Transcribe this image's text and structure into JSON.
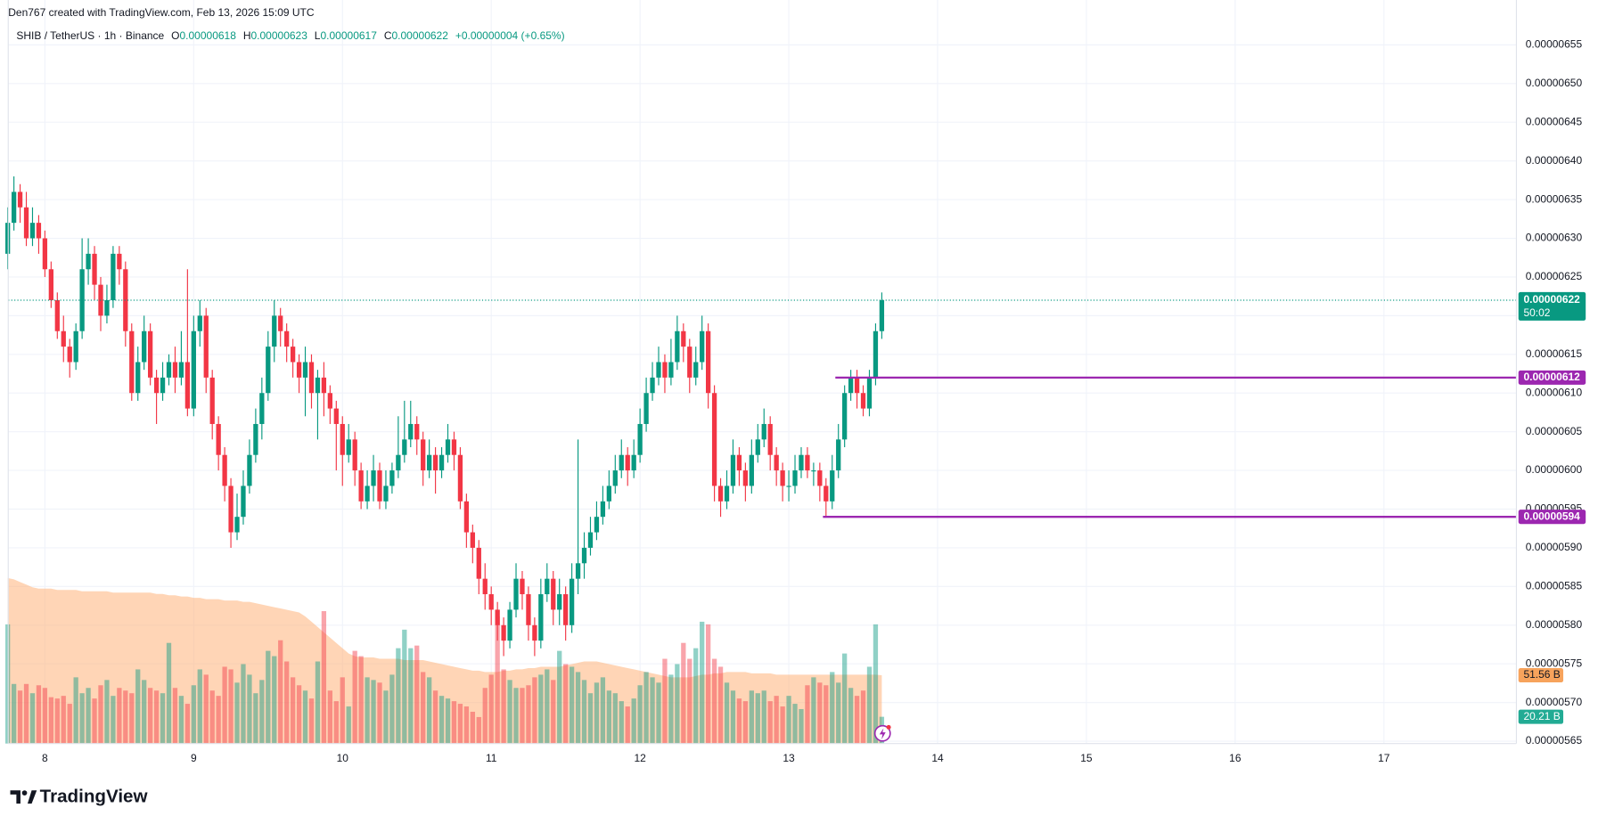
{
  "header": "Den767 created with TradingView.com, Feb 13, 2026 15:09 UTC",
  "legend": {
    "symbol": "SHIB / TetherUS · 1h · Binance",
    "ohlc": [
      {
        "label": "O",
        "value": "0.00000618"
      },
      {
        "label": "H",
        "value": "0.00000623"
      },
      {
        "label": "L",
        "value": "0.00000617"
      },
      {
        "label": "C",
        "value": "0.00000622"
      }
    ],
    "change": "+0.00000004 (+0.65%)"
  },
  "logo": "TradingView",
  "chart_data": {
    "type": "candlestick",
    "up_color": "#089981",
    "down_color": "#f23645",
    "ylim": [
      5.647e-06,
      6.608e-06
    ],
    "yticks": [
      {
        "value": 5.65e-06,
        "label": "0.00000565"
      },
      {
        "value": 5.7e-06,
        "label": "0.00000570"
      },
      {
        "value": 5.75e-06,
        "label": "0.00000575"
      },
      {
        "value": 5.8e-06,
        "label": "0.00000580"
      },
      {
        "value": 5.85e-06,
        "label": "0.00000585"
      },
      {
        "value": 5.9e-06,
        "label": "0.00000590"
      },
      {
        "value": 5.95e-06,
        "label": "0.00000595"
      },
      {
        "value": 6e-06,
        "label": "0.00000600"
      },
      {
        "value": 6.05e-06,
        "label": "0.00000605"
      },
      {
        "value": 6.1e-06,
        "label": "0.00000610"
      },
      {
        "value": 6.15e-06,
        "label": "0.00000615"
      },
      {
        "value": 6.2e-06,
        "label": "0.00000620"
      },
      {
        "value": 6.25e-06,
        "label": "0.00000625"
      },
      {
        "value": 6.3e-06,
        "label": "0.00000630"
      },
      {
        "value": 6.35e-06,
        "label": "0.00000635"
      },
      {
        "value": 6.4e-06,
        "label": "0.00000640"
      },
      {
        "value": 6.45e-06,
        "label": "0.00000645"
      },
      {
        "value": 6.5e-06,
        "label": "0.00000650"
      },
      {
        "value": 6.55e-06,
        "label": "0.00000655"
      }
    ],
    "xticks": [
      {
        "value": 6,
        "label": "8"
      },
      {
        "value": 30,
        "label": "9"
      },
      {
        "value": 54,
        "label": "10"
      },
      {
        "value": 78,
        "label": "11"
      },
      {
        "value": 102,
        "label": "12"
      },
      {
        "value": 126,
        "label": "13"
      },
      {
        "value": 150,
        "label": "14"
      },
      {
        "value": 174,
        "label": "15"
      },
      {
        "value": 198,
        "label": "16"
      },
      {
        "value": 222,
        "label": "17"
      }
    ],
    "grid": true,
    "candles": [
      [
        6.28e-06,
        6.34e-06,
        6.26e-06,
        6.32e-06
      ],
      [
        6.32e-06,
        6.38e-06,
        6.31e-06,
        6.36e-06
      ],
      [
        6.36e-06,
        6.37e-06,
        6.32e-06,
        6.34e-06
      ],
      [
        6.34e-06,
        6.36e-06,
        6.29e-06,
        6.3e-06
      ],
      [
        6.3e-06,
        6.34e-06,
        6.29e-06,
        6.32e-06
      ],
      [
        6.32e-06,
        6.33e-06,
        6.28e-06,
        6.3e-06
      ],
      [
        6.3e-06,
        6.31e-06,
        6.25e-06,
        6.26e-06
      ],
      [
        6.26e-06,
        6.27e-06,
        6.21e-06,
        6.22e-06
      ],
      [
        6.22e-06,
        6.23e-06,
        6.17e-06,
        6.18e-06
      ],
      [
        6.18e-06,
        6.2e-06,
        6.14e-06,
        6.16e-06
      ],
      [
        6.16e-06,
        6.17e-06,
        6.12e-06,
        6.14e-06
      ],
      [
        6.14e-06,
        6.19e-06,
        6.13e-06,
        6.18e-06
      ],
      [
        6.18e-06,
        6.3e-06,
        6.17e-06,
        6.26e-06
      ],
      [
        6.26e-06,
        6.3e-06,
        6.24e-06,
        6.28e-06
      ],
      [
        6.28e-06,
        6.29e-06,
        6.22e-06,
        6.24e-06
      ],
      [
        6.24e-06,
        6.25e-06,
        6.18e-06,
        6.2e-06
      ],
      [
        6.2e-06,
        6.24e-06,
        6.19e-06,
        6.22e-06
      ],
      [
        6.22e-06,
        6.29e-06,
        6.21e-06,
        6.28e-06
      ],
      [
        6.28e-06,
        6.29e-06,
        6.24e-06,
        6.26e-06
      ],
      [
        6.26e-06,
        6.27e-06,
        6.16e-06,
        6.18e-06
      ],
      [
        6.18e-06,
        6.19e-06,
        6.09e-06,
        6.1e-06
      ],
      [
        6.1e-06,
        6.16e-06,
        6.09e-06,
        6.14e-06
      ],
      [
        6.14e-06,
        6.2e-06,
        6.13e-06,
        6.18e-06
      ],
      [
        6.18e-06,
        6.19e-06,
        6.11e-06,
        6.12e-06
      ],
      [
        6.12e-06,
        6.13e-06,
        6.06e-06,
        6.1e-06
      ],
      [
        6.1e-06,
        6.14e-06,
        6.09e-06,
        6.12e-06
      ],
      [
        6.12e-06,
        6.15e-06,
        6.11e-06,
        6.14e-06
      ],
      [
        6.14e-06,
        6.16e-06,
        6.1e-06,
        6.12e-06
      ],
      [
        6.12e-06,
        6.18e-06,
        6.11e-06,
        6.14e-06
      ],
      [
        6.14e-06,
        6.26e-06,
        6.07e-06,
        6.08e-06
      ],
      [
        6.08e-06,
        6.2e-06,
        6.07e-06,
        6.18e-06
      ],
      [
        6.18e-06,
        6.22e-06,
        6.16e-06,
        6.2e-06
      ],
      [
        6.2e-06,
        6.21e-06,
        6.1e-06,
        6.12e-06
      ],
      [
        6.12e-06,
        6.13e-06,
        6.04e-06,
        6.06e-06
      ],
      [
        6.06e-06,
        6.07e-06,
        6e-06,
        6.02e-06
      ],
      [
        6.02e-06,
        6.03e-06,
        5.96e-06,
        5.98e-06
      ],
      [
        5.98e-06,
        5.99e-06,
        5.9e-06,
        5.92e-06
      ],
      [
        5.92e-06,
        5.97e-06,
        5.91e-06,
        5.94e-06
      ],
      [
        5.94e-06,
        6e-06,
        5.93e-06,
        5.98e-06
      ],
      [
        5.98e-06,
        6.04e-06,
        5.97e-06,
        6.02e-06
      ],
      [
        6.02e-06,
        6.08e-06,
        6.01e-06,
        6.06e-06
      ],
      [
        6.06e-06,
        6.12e-06,
        6.04e-06,
        6.1e-06
      ],
      [
        6.1e-06,
        6.18e-06,
        6.09e-06,
        6.16e-06
      ],
      [
        6.16e-06,
        6.22e-06,
        6.14e-06,
        6.2e-06
      ],
      [
        6.2e-06,
        6.21e-06,
        6.16e-06,
        6.18e-06
      ],
      [
        6.18e-06,
        6.19e-06,
        6.14e-06,
        6.16e-06
      ],
      [
        6.16e-06,
        6.17e-06,
        6.12e-06,
        6.14e-06
      ],
      [
        6.14e-06,
        6.15e-06,
        6.1e-06,
        6.12e-06
      ],
      [
        6.12e-06,
        6.16e-06,
        6.07e-06,
        6.14e-06
      ],
      [
        6.14e-06,
        6.15e-06,
        6.08e-06,
        6.1e-06
      ],
      [
        6.1e-06,
        6.13e-06,
        6.04e-06,
        6.12e-06
      ],
      [
        6.12e-06,
        6.14e-06,
        6.07e-06,
        6.1e-06
      ],
      [
        6.1e-06,
        6.11e-06,
        6.06e-06,
        6.08e-06
      ],
      [
        6.08e-06,
        6.09e-06,
        6e-06,
        6.06e-06
      ],
      [
        6.06e-06,
        6.07e-06,
        5.98e-06,
        6.02e-06
      ],
      [
        6.02e-06,
        6.06e-06,
        6.01e-06,
        6.04e-06
      ],
      [
        6.04e-06,
        6.05e-06,
        5.98e-06,
        6e-06
      ],
      [
        6e-06,
        6.01e-06,
        5.95e-06,
        5.96e-06
      ],
      [
        5.96e-06,
        6e-06,
        5.95e-06,
        5.98e-06
      ],
      [
        5.98e-06,
        6.02e-06,
        5.96e-06,
        6e-06
      ],
      [
        6e-06,
        6.01e-06,
        5.95e-06,
        5.96e-06
      ],
      [
        5.96e-06,
        6e-06,
        5.95e-06,
        5.98e-06
      ],
      [
        5.98e-06,
        6.01e-06,
        5.97e-06,
        6e-06
      ],
      [
        6e-06,
        6.07e-06,
        5.99e-06,
        6.02e-06
      ],
      [
        6.02e-06,
        6.09e-06,
        6.01e-06,
        6.04e-06
      ],
      [
        6.04e-06,
        6.09e-06,
        6.03e-06,
        6.06e-06
      ],
      [
        6.06e-06,
        6.07e-06,
        6.02e-06,
        6.04e-06
      ],
      [
        6.04e-06,
        6.05e-06,
        5.98e-06,
        6e-06
      ],
      [
        6e-06,
        6.04e-06,
        5.99e-06,
        6.02e-06
      ],
      [
        6.02e-06,
        6.03e-06,
        5.97e-06,
        6e-06
      ],
      [
        6e-06,
        6.03e-06,
        5.99e-06,
        6.02e-06
      ],
      [
        6.02e-06,
        6.06e-06,
        6.01e-06,
        6.04e-06
      ],
      [
        6.04e-06,
        6.05e-06,
        6e-06,
        6.02e-06
      ],
      [
        6.02e-06,
        6.03e-06,
        5.95e-06,
        5.96e-06
      ],
      [
        5.96e-06,
        5.97e-06,
        5.9e-06,
        5.92e-06
      ],
      [
        5.92e-06,
        5.93e-06,
        5.88e-06,
        5.9e-06
      ],
      [
        5.9e-06,
        5.91e-06,
        5.84e-06,
        5.86e-06
      ],
      [
        5.86e-06,
        5.88e-06,
        5.82e-06,
        5.84e-06
      ],
      [
        5.84e-06,
        5.85e-06,
        5.8e-06,
        5.82e-06
      ],
      [
        5.82e-06,
        5.83e-06,
        5.78e-06,
        5.8e-06
      ],
      [
        5.8e-06,
        5.81e-06,
        5.76e-06,
        5.78e-06
      ],
      [
        5.78e-06,
        5.83e-06,
        5.77e-06,
        5.82e-06
      ],
      [
        5.82e-06,
        5.88e-06,
        5.81e-06,
        5.86e-06
      ],
      [
        5.86e-06,
        5.87e-06,
        5.82e-06,
        5.84e-06
      ],
      [
        5.84e-06,
        5.85e-06,
        5.78e-06,
        5.8e-06
      ],
      [
        5.8e-06,
        5.81e-06,
        5.76e-06,
        5.78e-06
      ],
      [
        5.78e-06,
        5.86e-06,
        5.77e-06,
        5.84e-06
      ],
      [
        5.84e-06,
        5.88e-06,
        5.83e-06,
        5.86e-06
      ],
      [
        5.86e-06,
        5.87e-06,
        5.8e-06,
        5.82e-06
      ],
      [
        5.82e-06,
        5.86e-06,
        5.8e-06,
        5.84e-06
      ],
      [
        5.84e-06,
        5.85e-06,
        5.78e-06,
        5.8e-06
      ],
      [
        5.8e-06,
        5.88e-06,
        5.79e-06,
        5.86e-06
      ],
      [
        5.86e-06,
        6.04e-06,
        5.84e-06,
        5.88e-06
      ],
      [
        5.88e-06,
        5.92e-06,
        5.86e-06,
        5.9e-06
      ],
      [
        5.9e-06,
        5.94e-06,
        5.89e-06,
        5.92e-06
      ],
      [
        5.92e-06,
        5.96e-06,
        5.91e-06,
        5.94e-06
      ],
      [
        5.94e-06,
        5.98e-06,
        5.93e-06,
        5.96e-06
      ],
      [
        5.96e-06,
        6e-06,
        5.95e-06,
        5.98e-06
      ],
      [
        5.98e-06,
        6.02e-06,
        5.97e-06,
        6e-06
      ],
      [
        6e-06,
        6.04e-06,
        5.99e-06,
        6.02e-06
      ],
      [
        6.02e-06,
        6.03e-06,
        5.98e-06,
        6e-06
      ],
      [
        6e-06,
        6.04e-06,
        5.99e-06,
        6.02e-06
      ],
      [
        6.02e-06,
        6.08e-06,
        6.01e-06,
        6.06e-06
      ],
      [
        6.06e-06,
        6.12e-06,
        6.05e-06,
        6.1e-06
      ],
      [
        6.1e-06,
        6.14e-06,
        6.09e-06,
        6.12e-06
      ],
      [
        6.12e-06,
        6.16e-06,
        6.11e-06,
        6.14e-06
      ],
      [
        6.14e-06,
        6.15e-06,
        6.1e-06,
        6.12e-06
      ],
      [
        6.12e-06,
        6.17e-06,
        6.11e-06,
        6.14e-06
      ],
      [
        6.14e-06,
        6.2e-06,
        6.13e-06,
        6.18e-06
      ],
      [
        6.18e-06,
        6.19e-06,
        6.14e-06,
        6.16e-06
      ],
      [
        6.16e-06,
        6.17e-06,
        6.1e-06,
        6.12e-06
      ],
      [
        6.12e-06,
        6.16e-06,
        6.11e-06,
        6.14e-06
      ],
      [
        6.14e-06,
        6.2e-06,
        6.13e-06,
        6.18e-06
      ],
      [
        6.18e-06,
        6.19e-06,
        6.08e-06,
        6.1e-06
      ],
      [
        6.1e-06,
        6.11e-06,
        5.96e-06,
        5.98e-06
      ],
      [
        5.98e-06,
        5.99e-06,
        5.94e-06,
        5.96e-06
      ],
      [
        5.96e-06,
        6e-06,
        5.95e-06,
        5.98e-06
      ],
      [
        5.98e-06,
        6.04e-06,
        5.97e-06,
        6.02e-06
      ],
      [
        6.02e-06,
        6.03e-06,
        5.98e-06,
        6e-06
      ],
      [
        6e-06,
        6.01e-06,
        5.96e-06,
        5.98e-06
      ],
      [
        5.98e-06,
        6.04e-06,
        5.97e-06,
        6.02e-06
      ],
      [
        6.02e-06,
        6.06e-06,
        6.01e-06,
        6.04e-06
      ],
      [
        6.04e-06,
        6.08e-06,
        6.03e-06,
        6.06e-06
      ],
      [
        6.06e-06,
        6.07e-06,
        6e-06,
        6.02e-06
      ],
      [
        6.02e-06,
        6.03e-06,
        5.98e-06,
        6e-06
      ],
      [
        6e-06,
        6.01e-06,
        5.96e-06,
        5.98e-06
      ],
      [
        5.98e-06,
        6e-06,
        5.96e-06,
        5.98e-06
      ],
      [
        5.98e-06,
        6.02e-06,
        5.97e-06,
        6e-06
      ],
      [
        6e-06,
        6.03e-06,
        5.99e-06,
        6.02e-06
      ],
      [
        6.02e-06,
        6.03e-06,
        5.99e-06,
        6e-06
      ],
      [
        6e-06,
        6.01e-06,
        5.98e-06,
        6e-06
      ],
      [
        6e-06,
        6.01e-06,
        5.96e-06,
        5.98e-06
      ],
      [
        5.98e-06,
        5.99e-06,
        5.94e-06,
        5.96e-06
      ],
      [
        5.96e-06,
        6.02e-06,
        5.95e-06,
        6e-06
      ],
      [
        6e-06,
        6.06e-06,
        5.99e-06,
        6.04e-06
      ],
      [
        6.04e-06,
        6.11e-06,
        6.03e-06,
        6.1e-06
      ],
      [
        6.1e-06,
        6.13e-06,
        6.09e-06,
        6.12e-06
      ],
      [
        6.12e-06,
        6.13e-06,
        6.08e-06,
        6.1e-06
      ],
      [
        6.1e-06,
        6.11e-06,
        6.07e-06,
        6.08e-06
      ],
      [
        6.08e-06,
        6.13e-06,
        6.07e-06,
        6.12e-06
      ],
      [
        6.12e-06,
        6.19e-06,
        6.11e-06,
        6.18e-06
      ],
      [
        6.18e-06,
        6.23e-06,
        6.17e-06,
        6.22e-06
      ]
    ],
    "vlim": [
      0,
      100
    ],
    "volume": [
      90,
      45,
      40,
      45,
      38,
      44,
      42,
      35,
      34,
      36,
      30,
      50,
      38,
      42,
      34,
      44,
      48,
      36,
      42,
      40,
      38,
      56,
      48,
      42,
      40,
      38,
      76,
      42,
      36,
      30,
      44,
      56,
      52,
      40,
      36,
      58,
      56,
      46,
      60,
      52,
      38,
      48,
      70,
      66,
      78,
      62,
      50,
      44,
      40,
      34,
      62,
      100,
      40,
      32,
      50,
      28,
      70,
      66,
      50,
      48,
      46,
      40,
      52,
      72,
      86,
      72,
      74,
      54,
      50,
      40,
      36,
      34,
      32,
      30,
      28,
      24,
      20,
      42,
      52,
      96,
      56,
      48,
      42,
      42,
      44,
      50,
      52,
      56,
      48,
      70,
      60,
      58,
      54,
      48,
      38,
      46,
      50,
      40,
      38,
      32,
      28,
      34,
      44,
      54,
      50,
      46,
      64,
      52,
      60,
      76,
      64,
      72,
      92,
      90,
      64,
      58,
      46,
      40,
      34,
      32,
      40,
      38,
      40,
      32,
      36,
      28,
      36,
      30,
      26,
      44,
      50,
      46,
      44,
      54,
      46,
      68,
      42,
      36,
      40,
      58,
      90,
      20.21
    ],
    "volume_ma": [
      125,
      124,
      122,
      120,
      118,
      117,
      117,
      117,
      116,
      116,
      116,
      116,
      115,
      115,
      115,
      115,
      115,
      114,
      114,
      114,
      114,
      114,
      114,
      114,
      113,
      113,
      112,
      112,
      111,
      111,
      110,
      110,
      109,
      109,
      109,
      108,
      108,
      108,
      107,
      107,
      106,
      105,
      104,
      103,
      102,
      101,
      100,
      99,
      96,
      92,
      88,
      84,
      80,
      76,
      72,
      68,
      66,
      65,
      65,
      65,
      64,
      64,
      64,
      64,
      63,
      63,
      63,
      63,
      62,
      61,
      60,
      59,
      58,
      57,
      56,
      55,
      55,
      54,
      54,
      54,
      55,
      55,
      56,
      56,
      57,
      57,
      58,
      58,
      58,
      58,
      59,
      60,
      61,
      62,
      62,
      62,
      61,
      60,
      59,
      58,
      57,
      56,
      55,
      54,
      53,
      52,
      51,
      50,
      50,
      50,
      50,
      51,
      52,
      52,
      53,
      53,
      54,
      54,
      54,
      54,
      53,
      53,
      53,
      53,
      52,
      52,
      52,
      52,
      52,
      52,
      52,
      52,
      52,
      52,
      52,
      52,
      52,
      52,
      52,
      52,
      52,
      51.56
    ],
    "volume_ma_color": "#ffb27a",
    "volume_last": {
      "value": 20.21,
      "label": "20.21 B"
    },
    "volume_ma_last": {
      "value": 51.56,
      "label": "51.56 B"
    },
    "current_price": {
      "value": 6.22e-06,
      "label": "0.00000622",
      "countdown": "50:02"
    },
    "levels": [
      {
        "value": 6.12e-06,
        "label": "0.00000612",
        "color": "#9c27b0"
      },
      {
        "value": 5.94e-06,
        "label": "0.00000594",
        "color": "#9c27b0"
      }
    ]
  }
}
